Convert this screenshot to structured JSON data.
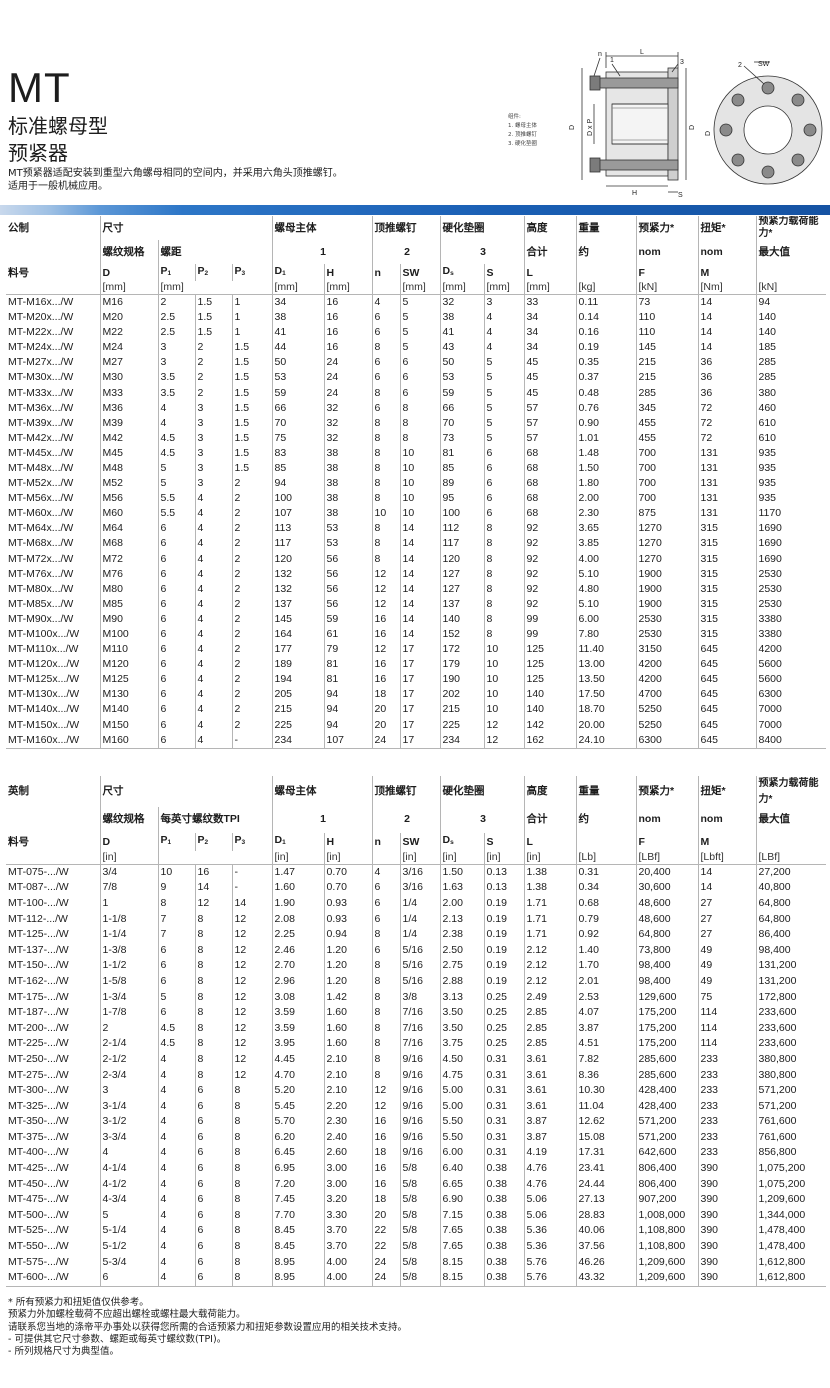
{
  "header": {
    "title": "MT",
    "subtitle_line1": "标准螺母型",
    "subtitle_line2": "预紧器",
    "intro_line1": "MT预紧器适配安装到重型六角螺母相同的空间内，并采用六角头顶推螺钉。",
    "intro_line2": "适用于一般机械应用。"
  },
  "drawing": {
    "legend": [
      "组件:",
      "1.  螺母主体",
      "2.  顶推螺钉",
      "3.  硬化垫圈"
    ],
    "labels": {
      "n": "n",
      "L": "L",
      "one": "1",
      "two": "2",
      "three": "3",
      "sw": "SW",
      "h": "H",
      "s": "S",
      "d1": "D",
      "dxp": "D x P",
      "ds": "D",
      "d1b": "D"
    }
  },
  "metric": {
    "headers": {
      "system": "公制",
      "size": "尺寸",
      "body": "螺母主体",
      "screw": "顶推螺钉",
      "washer": "硬化垫圈",
      "height": "高度",
      "weight": "重量",
      "preload": "预紧力*",
      "torque": "扭矩*",
      "capacity": "预紧力载荷能力*"
    },
    "headers2": {
      "thread": "螺纹规格",
      "pitch": "螺距",
      "body_no": "1",
      "screw_no": "2",
      "washer_no": "3",
      "total": "合计",
      "approx": "约",
      "nom1": "nom",
      "nom2": "nom",
      "max": "最大值"
    },
    "symbols": {
      "part": "料号",
      "d": "D",
      "p1": "P",
      "p2": "P",
      "p3": "P",
      "d1": "D",
      "h": "H",
      "n": "n",
      "sw": "SW",
      "ds": "D",
      "s": "S",
      "l": "L",
      "f": "F",
      "m": "M"
    },
    "units": {
      "d": "[mm]",
      "p1": "[mm]",
      "d1": "[mm]",
      "h": "[mm]",
      "sw": "[mm]",
      "ds": "[mm]",
      "s": "[mm]",
      "l": "[mm]",
      "wt": "[kg]",
      "f": "[kN]",
      "m": "[Nm]",
      "cap": "[kN]"
    },
    "rows": [
      [
        "MT-M16x.../W",
        "M16",
        "2",
        "1.5",
        "1",
        "34",
        "16",
        "4",
        "5",
        "32",
        "3",
        "33",
        "0.11",
        "73",
        "14",
        "94"
      ],
      [
        "MT-M20x.../W",
        "M20",
        "2.5",
        "1.5",
        "1",
        "38",
        "16",
        "6",
        "5",
        "38",
        "4",
        "34",
        "0.14",
        "110",
        "14",
        "140"
      ],
      [
        "MT-M22x.../W",
        "M22",
        "2.5",
        "1.5",
        "1",
        "41",
        "16",
        "6",
        "5",
        "41",
        "4",
        "34",
        "0.16",
        "110",
        "14",
        "140"
      ],
      [
        "MT-M24x.../W",
        "M24",
        "3",
        "2",
        "1.5",
        "44",
        "16",
        "8",
        "5",
        "43",
        "4",
        "34",
        "0.19",
        "145",
        "14",
        "185"
      ],
      [
        "MT-M27x.../W",
        "M27",
        "3",
        "2",
        "1.5",
        "50",
        "24",
        "6",
        "6",
        "50",
        "5",
        "45",
        "0.35",
        "215",
        "36",
        "285"
      ],
      [
        "MT-M30x.../W",
        "M30",
        "3.5",
        "2",
        "1.5",
        "53",
        "24",
        "6",
        "6",
        "53",
        "5",
        "45",
        "0.37",
        "215",
        "36",
        "285"
      ],
      [
        "MT-M33x.../W",
        "M33",
        "3.5",
        "2",
        "1.5",
        "59",
        "24",
        "8",
        "6",
        "59",
        "5",
        "45",
        "0.48",
        "285",
        "36",
        "380"
      ],
      [
        "MT-M36x.../W",
        "M36",
        "4",
        "3",
        "1.5",
        "66",
        "32",
        "6",
        "8",
        "66",
        "5",
        "57",
        "0.76",
        "345",
        "72",
        "460"
      ],
      [
        "MT-M39x.../W",
        "M39",
        "4",
        "3",
        "1.5",
        "70",
        "32",
        "8",
        "8",
        "70",
        "5",
        "57",
        "0.90",
        "455",
        "72",
        "610"
      ],
      [
        "MT-M42x.../W",
        "M42",
        "4.5",
        "3",
        "1.5",
        "75",
        "32",
        "8",
        "8",
        "73",
        "5",
        "57",
        "1.01",
        "455",
        "72",
        "610"
      ],
      [
        "MT-M45x.../W",
        "M45",
        "4.5",
        "3",
        "1.5",
        "83",
        "38",
        "8",
        "10",
        "81",
        "6",
        "68",
        "1.48",
        "700",
        "131",
        "935"
      ],
      [
        "MT-M48x.../W",
        "M48",
        "5",
        "3",
        "1.5",
        "85",
        "38",
        "8",
        "10",
        "85",
        "6",
        "68",
        "1.50",
        "700",
        "131",
        "935"
      ],
      [
        "MT-M52x.../W",
        "M52",
        "5",
        "3",
        "2",
        "94",
        "38",
        "8",
        "10",
        "89",
        "6",
        "68",
        "1.80",
        "700",
        "131",
        "935"
      ],
      [
        "MT-M56x.../W",
        "M56",
        "5.5",
        "4",
        "2",
        "100",
        "38",
        "8",
        "10",
        "95",
        "6",
        "68",
        "2.00",
        "700",
        "131",
        "935"
      ],
      [
        "MT-M60x.../W",
        "M60",
        "5.5",
        "4",
        "2",
        "107",
        "38",
        "10",
        "10",
        "100",
        "6",
        "68",
        "2.30",
        "875",
        "131",
        "1170"
      ],
      [
        "MT-M64x.../W",
        "M64",
        "6",
        "4",
        "2",
        "113",
        "53",
        "8",
        "14",
        "112",
        "8",
        "92",
        "3.65",
        "1270",
        "315",
        "1690"
      ],
      [
        "MT-M68x.../W",
        "M68",
        "6",
        "4",
        "2",
        "117",
        "53",
        "8",
        "14",
        "117",
        "8",
        "92",
        "3.85",
        "1270",
        "315",
        "1690"
      ],
      [
        "MT-M72x.../W",
        "M72",
        "6",
        "4",
        "2",
        "120",
        "56",
        "8",
        "14",
        "120",
        "8",
        "92",
        "4.00",
        "1270",
        "315",
        "1690"
      ],
      [
        "MT-M76x.../W",
        "M76",
        "6",
        "4",
        "2",
        "132",
        "56",
        "12",
        "14",
        "127",
        "8",
        "92",
        "5.10",
        "1900",
        "315",
        "2530"
      ],
      [
        "MT-M80x.../W",
        "M80",
        "6",
        "4",
        "2",
        "132",
        "56",
        "12",
        "14",
        "127",
        "8",
        "92",
        "4.80",
        "1900",
        "315",
        "2530"
      ],
      [
        "MT-M85x.../W",
        "M85",
        "6",
        "4",
        "2",
        "137",
        "56",
        "12",
        "14",
        "137",
        "8",
        "92",
        "5.10",
        "1900",
        "315",
        "2530"
      ],
      [
        "MT-M90x.../W",
        "M90",
        "6",
        "4",
        "2",
        "145",
        "59",
        "16",
        "14",
        "140",
        "8",
        "99",
        "6.00",
        "2530",
        "315",
        "3380"
      ],
      [
        "MT-M100x.../W",
        "M100",
        "6",
        "4",
        "2",
        "164",
        "61",
        "16",
        "14",
        "152",
        "8",
        "99",
        "7.80",
        "2530",
        "315",
        "3380"
      ],
      [
        "MT-M110x.../W",
        "M110",
        "6",
        "4",
        "2",
        "177",
        "79",
        "12",
        "17",
        "172",
        "10",
        "125",
        "11.40",
        "3150",
        "645",
        "4200"
      ],
      [
        "MT-M120x.../W",
        "M120",
        "6",
        "4",
        "2",
        "189",
        "81",
        "16",
        "17",
        "179",
        "10",
        "125",
        "13.00",
        "4200",
        "645",
        "5600"
      ],
      [
        "MT-M125x.../W",
        "M125",
        "6",
        "4",
        "2",
        "194",
        "81",
        "16",
        "17",
        "190",
        "10",
        "125",
        "13.50",
        "4200",
        "645",
        "5600"
      ],
      [
        "MT-M130x.../W",
        "M130",
        "6",
        "4",
        "2",
        "205",
        "94",
        "18",
        "17",
        "202",
        "10",
        "140",
        "17.50",
        "4700",
        "645",
        "6300"
      ],
      [
        "MT-M140x.../W",
        "M140",
        "6",
        "4",
        "2",
        "215",
        "94",
        "20",
        "17",
        "215",
        "10",
        "140",
        "18.70",
        "5250",
        "645",
        "7000"
      ],
      [
        "MT-M150x.../W",
        "M150",
        "6",
        "4",
        "2",
        "225",
        "94",
        "20",
        "17",
        "225",
        "12",
        "142",
        "20.00",
        "5250",
        "645",
        "7000"
      ],
      [
        "MT-M160x.../W",
        "M160",
        "6",
        "4",
        "-",
        "234",
        "107",
        "24",
        "17",
        "234",
        "12",
        "162",
        "24.10",
        "6300",
        "645",
        "8400"
      ]
    ]
  },
  "imperial": {
    "headers": {
      "system": "英制",
      "size": "尺寸",
      "body": "螺母主体",
      "screw": "顶推螺钉",
      "washer": "硬化垫圈",
      "height": "高度",
      "weight": "重量",
      "preload": "预紧力*",
      "torque": "扭矩*",
      "capacity": "预紧力载荷能力*"
    },
    "headers2": {
      "thread": "螺纹规格",
      "tpi": "每英寸螺纹数TPI",
      "body_no": "1",
      "screw_no": "2",
      "washer_no": "3",
      "total": "合计",
      "approx": "约",
      "nom1": "nom",
      "nom2": "nom",
      "max": "最大值"
    },
    "symbols": {
      "part": "料号",
      "d": "D",
      "p1": "P",
      "p2": "P",
      "p3": "P",
      "d1": "D",
      "h": "H",
      "n": "n",
      "sw": "SW",
      "ds": "D",
      "s": "S",
      "l": "L",
      "f": "F",
      "m": "M"
    },
    "units": {
      "d": "[in]",
      "d1": "[in]",
      "h": "[in]",
      "sw": "[in]",
      "ds": "[in]",
      "s": "[in]",
      "l": "[in]",
      "wt": "[Lb]",
      "f": "[LBf]",
      "m": "[Lbft]",
      "cap": "[LBf]"
    },
    "rows": [
      [
        "MT-075-.../W",
        "3/4",
        "10",
        "16",
        "-",
        "1.47",
        "0.70",
        "4",
        "3/16",
        "1.50",
        "0.13",
        "1.38",
        "0.31",
        "20,400",
        "14",
        "27,200"
      ],
      [
        "MT-087-.../W",
        "7/8",
        "9",
        "14",
        "-",
        "1.60",
        "0.70",
        "6",
        "3/16",
        "1.63",
        "0.13",
        "1.38",
        "0.34",
        "30,600",
        "14",
        "40,800"
      ],
      [
        "MT-100-.../W",
        "1",
        "8",
        "12",
        "14",
        "1.90",
        "0.93",
        "6",
        "1/4",
        "2.00",
        "0.19",
        "1.71",
        "0.68",
        "48,600",
        "27",
        "64,800"
      ],
      [
        "MT-112-.../W",
        "1-1/8",
        "7",
        "8",
        "12",
        "2.08",
        "0.93",
        "6",
        "1/4",
        "2.13",
        "0.19",
        "1.71",
        "0.79",
        "48,600",
        "27",
        "64,800"
      ],
      [
        "MT-125-.../W",
        "1-1/4",
        "7",
        "8",
        "12",
        "2.25",
        "0.94",
        "8",
        "1/4",
        "2.38",
        "0.19",
        "1.71",
        "0.92",
        "64,800",
        "27",
        "86,400"
      ],
      [
        "MT-137-.../W",
        "1-3/8",
        "6",
        "8",
        "12",
        "2.46",
        "1.20",
        "6",
        "5/16",
        "2.50",
        "0.19",
        "2.12",
        "1.40",
        "73,800",
        "49",
        "98,400"
      ],
      [
        "MT-150-.../W",
        "1-1/2",
        "6",
        "8",
        "12",
        "2.70",
        "1.20",
        "8",
        "5/16",
        "2.75",
        "0.19",
        "2.12",
        "1.70",
        "98,400",
        "49",
        "131,200"
      ],
      [
        "MT-162-.../W",
        "1-5/8",
        "6",
        "8",
        "12",
        "2.96",
        "1.20",
        "8",
        "5/16",
        "2.88",
        "0.19",
        "2.12",
        "2.01",
        "98,400",
        "49",
        "131,200"
      ],
      [
        "MT-175-.../W",
        "1-3/4",
        "5",
        "8",
        "12",
        "3.08",
        "1.42",
        "8",
        "3/8",
        "3.13",
        "0.25",
        "2.49",
        "2.53",
        "129,600",
        "75",
        "172,800"
      ],
      [
        "MT-187-.../W",
        "1-7/8",
        "6",
        "8",
        "12",
        "3.59",
        "1.60",
        "8",
        "7/16",
        "3.50",
        "0.25",
        "2.85",
        "4.07",
        "175,200",
        "114",
        "233,600"
      ],
      [
        "MT-200-.../W",
        "2",
        "4.5",
        "8",
        "12",
        "3.59",
        "1.60",
        "8",
        "7/16",
        "3.50",
        "0.25",
        "2.85",
        "3.87",
        "175,200",
        "114",
        "233,600"
      ],
      [
        "MT-225-.../W",
        "2-1/4",
        "4.5",
        "8",
        "12",
        "3.95",
        "1.60",
        "8",
        "7/16",
        "3.75",
        "0.25",
        "2.85",
        "4.51",
        "175,200",
        "114",
        "233,600"
      ],
      [
        "MT-250-.../W",
        "2-1/2",
        "4",
        "8",
        "12",
        "4.45",
        "2.10",
        "8",
        "9/16",
        "4.50",
        "0.31",
        "3.61",
        "7.82",
        "285,600",
        "233",
        "380,800"
      ],
      [
        "MT-275-.../W",
        "2-3/4",
        "4",
        "8",
        "12",
        "4.70",
        "2.10",
        "8",
        "9/16",
        "4.75",
        "0.31",
        "3.61",
        "8.36",
        "285,600",
        "233",
        "380,800"
      ],
      [
        "MT-300-.../W",
        "3",
        "4",
        "6",
        "8",
        "5.20",
        "2.10",
        "12",
        "9/16",
        "5.00",
        "0.31",
        "3.61",
        "10.30",
        "428,400",
        "233",
        "571,200"
      ],
      [
        "MT-325-.../W",
        "3-1/4",
        "4",
        "6",
        "8",
        "5.45",
        "2.20",
        "12",
        "9/16",
        "5.00",
        "0.31",
        "3.61",
        "11.04",
        "428,400",
        "233",
        "571,200"
      ],
      [
        "MT-350-.../W",
        "3-1/2",
        "4",
        "6",
        "8",
        "5.70",
        "2.30",
        "16",
        "9/16",
        "5.50",
        "0.31",
        "3.87",
        "12.62",
        "571,200",
        "233",
        "761,600"
      ],
      [
        "MT-375-.../W",
        "3-3/4",
        "4",
        "6",
        "8",
        "6.20",
        "2.40",
        "16",
        "9/16",
        "5.50",
        "0.31",
        "3.87",
        "15.08",
        "571,200",
        "233",
        "761,600"
      ],
      [
        "MT-400-.../W",
        "4",
        "4",
        "6",
        "8",
        "6.45",
        "2.60",
        "18",
        "9/16",
        "6.00",
        "0.31",
        "4.19",
        "17.31",
        "642,600",
        "233",
        "856,800"
      ],
      [
        "MT-425-.../W",
        "4-1/4",
        "4",
        "6",
        "8",
        "6.95",
        "3.00",
        "16",
        "5/8",
        "6.40",
        "0.38",
        "4.76",
        "23.41",
        "806,400",
        "390",
        "1,075,200"
      ],
      [
        "MT-450-.../W",
        "4-1/2",
        "4",
        "6",
        "8",
        "7.20",
        "3.00",
        "16",
        "5/8",
        "6.65",
        "0.38",
        "4.76",
        "24.44",
        "806,400",
        "390",
        "1,075,200"
      ],
      [
        "MT-475-.../W",
        "4-3/4",
        "4",
        "6",
        "8",
        "7.45",
        "3.20",
        "18",
        "5/8",
        "6.90",
        "0.38",
        "5.06",
        "27.13",
        "907,200",
        "390",
        "1,209,600"
      ],
      [
        "MT-500-.../W",
        "5",
        "4",
        "6",
        "8",
        "7.70",
        "3.30",
        "20",
        "5/8",
        "7.15",
        "0.38",
        "5.06",
        "28.83",
        "1,008,000",
        "390",
        "1,344,000"
      ],
      [
        "MT-525-.../W",
        "5-1/4",
        "4",
        "6",
        "8",
        "8.45",
        "3.70",
        "22",
        "5/8",
        "7.65",
        "0.38",
        "5.36",
        "40.06",
        "1,108,800",
        "390",
        "1,478,400"
      ],
      [
        "MT-550-.../W",
        "5-1/2",
        "4",
        "6",
        "8",
        "8.45",
        "3.70",
        "22",
        "5/8",
        "7.65",
        "0.38",
        "5.36",
        "37.56",
        "1,108,800",
        "390",
        "1,478,400"
      ],
      [
        "MT-575-.../W",
        "5-3/4",
        "4",
        "6",
        "8",
        "8.95",
        "4.00",
        "24",
        "5/8",
        "8.15",
        "0.38",
        "5.76",
        "46.26",
        "1,209,600",
        "390",
        "1,612,800"
      ],
      [
        "MT-600-.../W",
        "6",
        "4",
        "6",
        "8",
        "8.95",
        "4.00",
        "24",
        "5/8",
        "8.15",
        "0.38",
        "5.76",
        "43.32",
        "1,209,600",
        "390",
        "1,612,800"
      ]
    ]
  },
  "footnotes": [
    "* 所有预紧力和扭矩值仅供参考。",
    "  预紧力外加螺栓载荷不应超出螺栓或螺柱最大载荷能力。",
    "  请联系您当地的涤帝平办事处以获得您所需的合适预紧力和扭矩参数设置应用的相关技术支持。",
    "- 可提供其它尺寸参数、螺距或每英寸螺纹数(TPI)。",
    "- 所列规格尺寸为典型值。"
  ],
  "colors": {
    "accent": "#1a5fb4",
    "rule": "#b5b5b5"
  },
  "icons": {
    "drawing_side": "tensioner-side-section-drawing",
    "drawing_front": "tensioner-front-view-drawing"
  }
}
